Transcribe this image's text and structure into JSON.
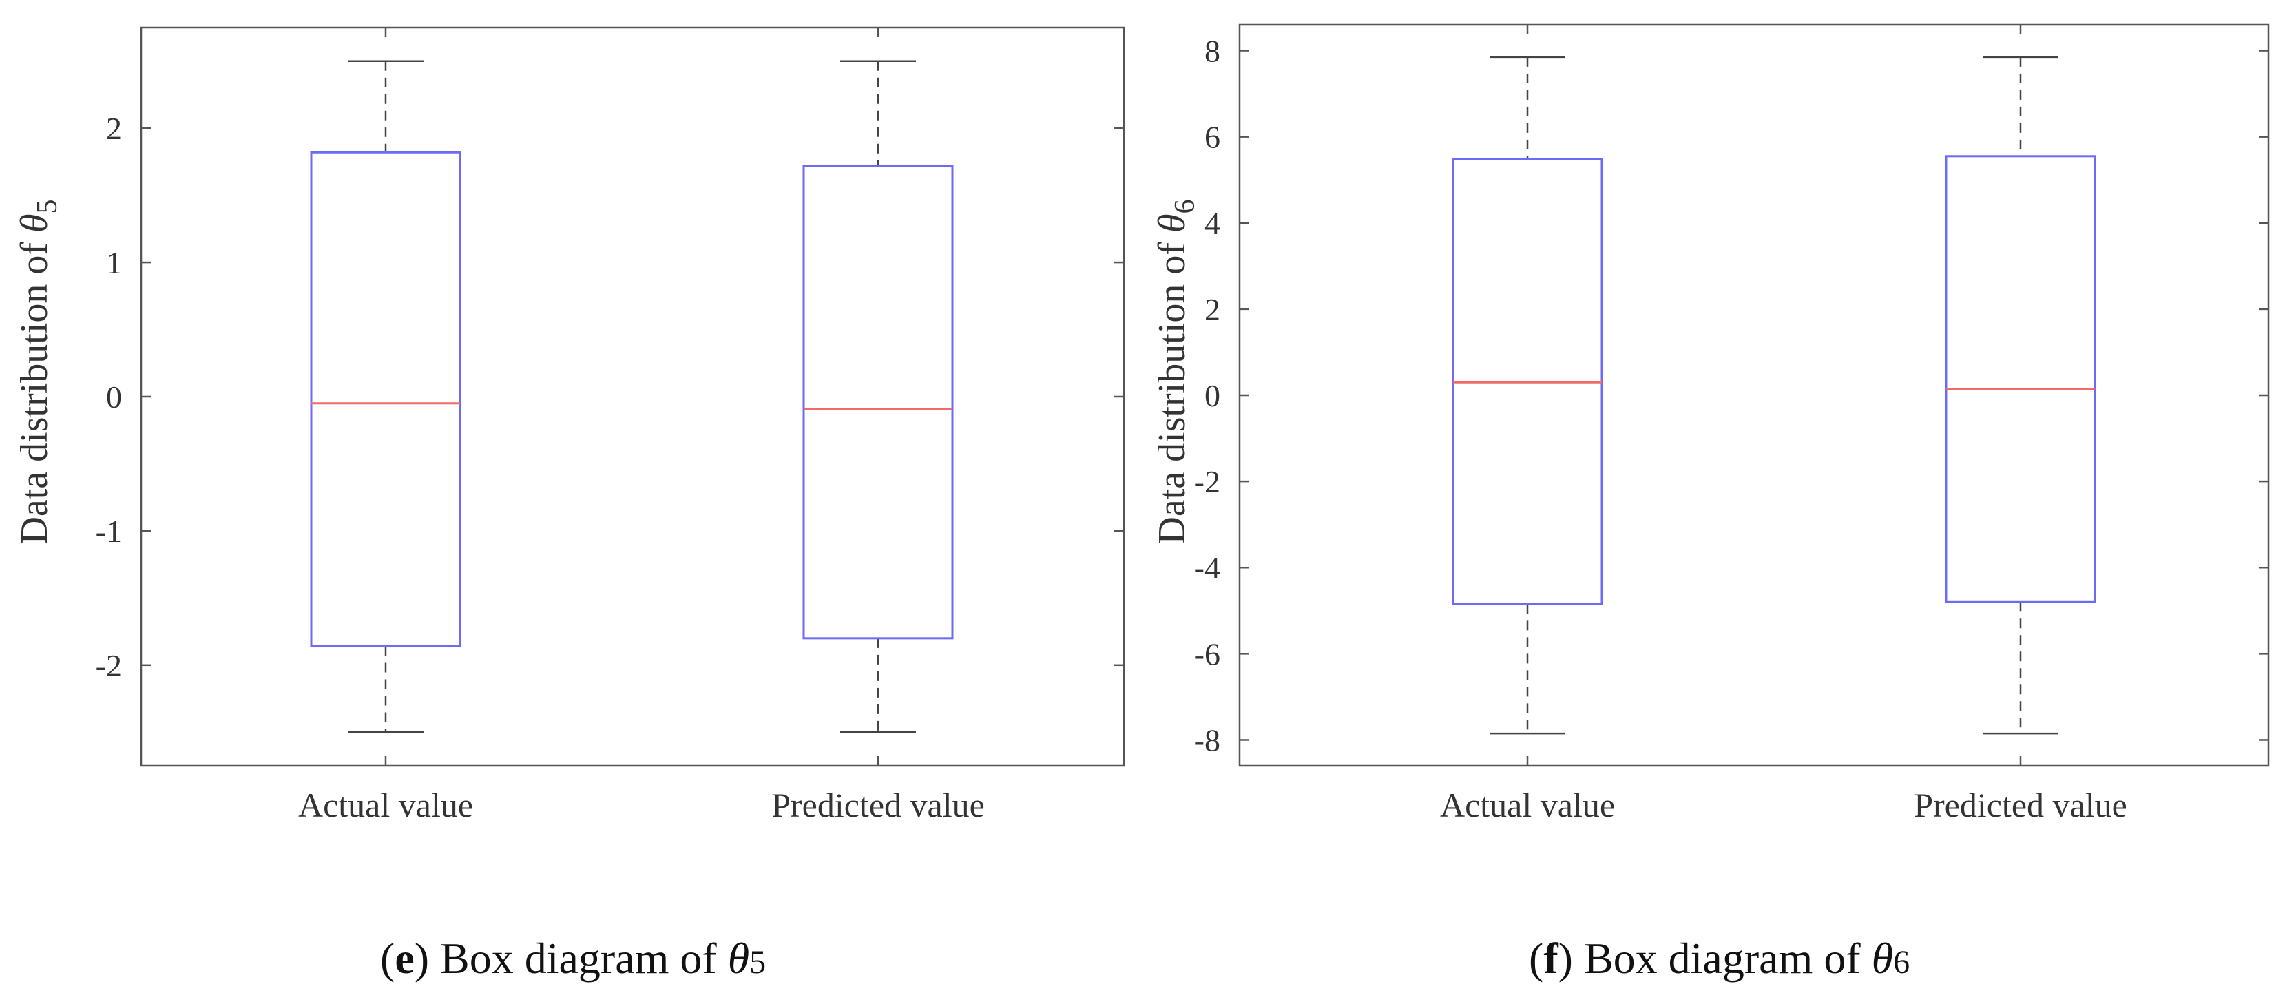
{
  "chart_data": [
    {
      "type": "box",
      "title": "",
      "ylabel_text": "Data distribution of ",
      "ylabel_symbol": "θ",
      "ylabel_sub": "5",
      "xlabel": "",
      "categories": [
        "Actual value",
        "Predicted value"
      ],
      "ylim": [
        -2.75,
        2.75
      ],
      "yticks": [
        -2,
        -1,
        0,
        1,
        2
      ],
      "ytick_labels": [
        "-2",
        "-1",
        "0",
        "1",
        "2"
      ],
      "boxes": [
        {
          "name": "Actual value",
          "whisker_low": -2.5,
          "q1": -1.86,
          "median": -0.05,
          "q3": 1.82,
          "whisker_high": 2.5
        },
        {
          "name": "Predicted value",
          "whisker_low": -2.5,
          "q1": -1.8,
          "median": -0.09,
          "q3": 1.72,
          "whisker_high": 2.5
        }
      ],
      "box_color": "#6b6bf5",
      "median_color": "#f06a6a",
      "whisker_color": "#444444",
      "grid": false,
      "caption": {
        "label": "e",
        "text": "Box diagram of ",
        "symbol": "θ",
        "sub": "5"
      }
    },
    {
      "type": "box",
      "title": "",
      "ylabel_text": "Data distribution of ",
      "ylabel_symbol": "θ",
      "ylabel_sub": "6",
      "xlabel": "",
      "categories": [
        "Actual value",
        "Predicted value"
      ],
      "ylim": [
        -8.6,
        8.6
      ],
      "yticks": [
        -8,
        -6,
        -4,
        -2,
        0,
        2,
        4,
        6,
        8
      ],
      "ytick_labels": [
        "-8",
        "-6",
        "-4",
        "-2",
        "0",
        "2",
        "4",
        "6",
        "8"
      ],
      "boxes": [
        {
          "name": "Actual value",
          "whisker_low": -7.85,
          "q1": -4.85,
          "median": 0.3,
          "q3": 5.48,
          "whisker_high": 7.85
        },
        {
          "name": "Predicted value",
          "whisker_low": -7.85,
          "q1": -4.8,
          "median": 0.15,
          "q3": 5.55,
          "whisker_high": 7.85
        }
      ],
      "box_color": "#6b6bf5",
      "median_color": "#f06a6a",
      "whisker_color": "#444444",
      "grid": false,
      "caption": {
        "label": "f",
        "text": "Box diagram of ",
        "symbol": "θ",
        "sub": "6"
      }
    }
  ]
}
